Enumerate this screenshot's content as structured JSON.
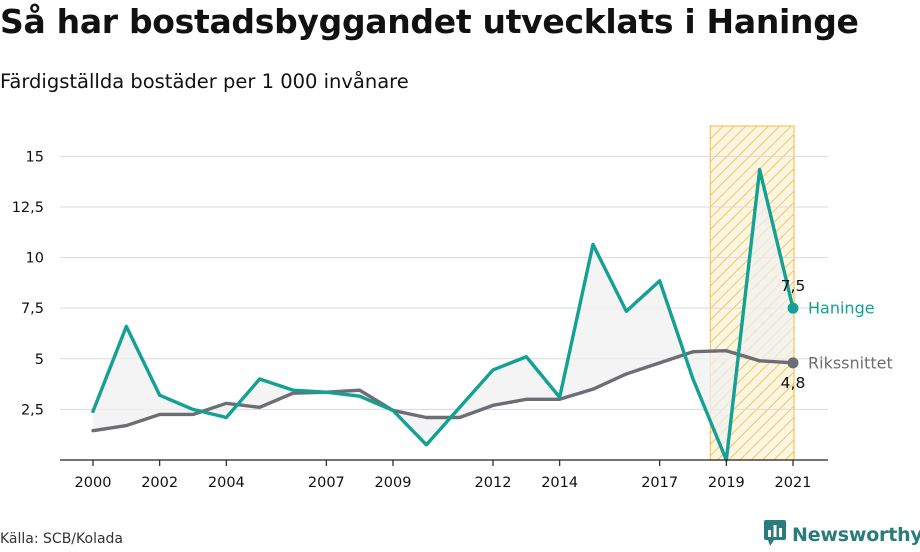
{
  "header": {
    "title": "Så har bostadsbyggandet utvecklats i Haninge",
    "subtitle": "Färdigställda bostäder per 1 000 invånare"
  },
  "footer": {
    "source": "Källa: SCB/Kolada",
    "brand": "Newsworthy"
  },
  "colors": {
    "haninge": "#13a194",
    "riket": "#6d6e73",
    "highlight_stroke": "#f4c55d",
    "highlight_fill": "#fdf3d9",
    "gap_fill": "#f0f0f0",
    "brand": "#2a7b7b"
  },
  "icons": [
    "chart-icon"
  ],
  "chart_data": {
    "type": "line",
    "title": "Så har bostadsbyggandet utvecklats i Haninge",
    "subtitle": "Färdigställda bostäder per 1 000 invånare",
    "xlabel": "",
    "ylabel": "",
    "x": [
      2000,
      2001,
      2002,
      2003,
      2004,
      2005,
      2006,
      2007,
      2008,
      2009,
      2010,
      2011,
      2012,
      2013,
      2014,
      2015,
      2016,
      2017,
      2018,
      2019,
      2020,
      2021
    ],
    "x_ticks": [
      "2000",
      "2002",
      "2004",
      "2007",
      "2009",
      "2012",
      "2014",
      "2017",
      "2019",
      "2021"
    ],
    "y_ticks": [
      "2,5",
      "5",
      "7,5",
      "10",
      "12,5",
      "15"
    ],
    "y_tick_values": [
      2.5,
      5,
      7.5,
      10,
      12.5,
      15
    ],
    "ylim": [
      0,
      16.5
    ],
    "grid": true,
    "highlight_range": [
      2019,
      2021
    ],
    "series": [
      {
        "name": "Haninge",
        "values": [
          2.4,
          6.6,
          3.2,
          2.5,
          2.1,
          4.0,
          3.45,
          3.35,
          3.15,
          2.45,
          0.75,
          2.6,
          4.45,
          5.1,
          3.1,
          10.65,
          7.35,
          8.85,
          4.0,
          0.0,
          14.35,
          7.5
        ],
        "end_label": "7,5"
      },
      {
        "name": "Rikssnittet",
        "values": [
          1.45,
          1.7,
          2.25,
          2.25,
          2.8,
          2.6,
          3.3,
          3.35,
          3.45,
          2.45,
          2.1,
          2.1,
          2.7,
          3.0,
          3.0,
          3.5,
          4.25,
          4.8,
          5.35,
          5.4,
          4.9,
          4.8
        ],
        "end_label": "4,8"
      }
    ]
  }
}
